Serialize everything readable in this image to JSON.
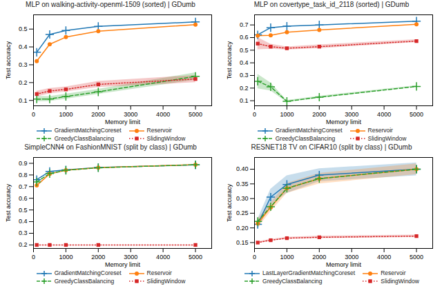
{
  "chart_data": [
    {
      "type": "line",
      "title": "MLP on walking-activity-openml-1509 (sorted) | GDumb",
      "xlabel": "Memory limit",
      "ylabel": "Test accuracy",
      "x": [
        100,
        500,
        1000,
        2000,
        5000
      ],
      "xlim": [
        0,
        5500
      ],
      "xticks": [
        0,
        1000,
        2000,
        3000,
        4000,
        5000
      ],
      "ylim": [
        0.07,
        0.58
      ],
      "yticks": [
        0.1,
        0.2,
        0.3,
        0.4,
        0.5
      ],
      "grid": false,
      "legend": "bottom",
      "series": [
        {
          "name": "GradientMatchingCoreset",
          "color": "#1f77b4",
          "marker": "plus",
          "line_style": "solid",
          "values": [
            0.37,
            0.47,
            0.492,
            0.515,
            0.54
          ]
        },
        {
          "name": "Reservoir",
          "color": "#ff7f0e",
          "marker": "circle",
          "line_style": "solid",
          "values": [
            0.32,
            0.415,
            0.455,
            0.488,
            0.525
          ]
        },
        {
          "name": "GreedyClassBalancing",
          "color": "#2ca02c",
          "marker": "plus",
          "line_style": "dashed",
          "values": [
            0.108,
            0.108,
            0.122,
            0.148,
            0.235
          ],
          "lower": [
            0.093,
            0.095,
            0.108,
            0.135,
            0.215
          ],
          "upper": [
            0.123,
            0.122,
            0.136,
            0.163,
            0.255
          ]
        },
        {
          "name": "SlidingWindow",
          "color": "#d62728",
          "marker": "square",
          "line_style": "dotted",
          "values": [
            0.136,
            0.153,
            0.162,
            0.19,
            0.22
          ],
          "lower": [
            0.12,
            0.138,
            0.148,
            0.173,
            0.2
          ],
          "upper": [
            0.152,
            0.168,
            0.176,
            0.207,
            0.24
          ]
        }
      ]
    },
    {
      "type": "line",
      "title": "MLP on covertype_task_id_2118 (sorted) | GDumb",
      "xlabel": "Memory limit",
      "ylabel": "Test accuracy",
      "x": [
        100,
        500,
        1000,
        2000,
        5000
      ],
      "xlim": [
        0,
        5500
      ],
      "xticks": [
        0,
        1000,
        2000,
        3000,
        4000,
        5000
      ],
      "ylim": [
        0.06,
        0.78
      ],
      "yticks": [
        0.1,
        0.2,
        0.3,
        0.4,
        0.5,
        0.6,
        0.7
      ],
      "grid": false,
      "legend": "bottom",
      "series": [
        {
          "name": "GradientMatchingCoreset",
          "color": "#1f77b4",
          "marker": "plus",
          "line_style": "solid",
          "values": [
            0.622,
            0.678,
            0.69,
            0.7,
            0.73
          ]
        },
        {
          "name": "Reservoir",
          "color": "#ff7f0e",
          "marker": "circle",
          "line_style": "solid",
          "values": [
            0.615,
            0.618,
            0.642,
            0.66,
            0.705
          ]
        },
        {
          "name": "GreedyClassBalancing",
          "color": "#2ca02c",
          "marker": "plus",
          "line_style": "dashed",
          "values": [
            0.254,
            0.21,
            0.095,
            0.128,
            0.213
          ],
          "lower": [
            0.195,
            0.178,
            0.088,
            0.12,
            0.208
          ],
          "upper": [
            0.31,
            0.242,
            0.102,
            0.136,
            0.22
          ]
        },
        {
          "name": "SlidingWindow",
          "color": "#d62728",
          "marker": "square",
          "line_style": "dotted",
          "values": [
            0.552,
            0.528,
            0.515,
            0.528,
            0.572
          ],
          "lower": [
            0.505,
            0.508,
            0.503,
            0.513,
            0.562
          ],
          "upper": [
            0.6,
            0.548,
            0.527,
            0.543,
            0.583
          ]
        }
      ]
    },
    {
      "type": "line",
      "title": "SimpleCNN4 on FashionMNIST (split by class) | GDumb",
      "xlabel": "Memory limit",
      "ylabel": "Test accuracy",
      "x": [
        100,
        500,
        1000,
        2000,
        5000
      ],
      "xlim": [
        0,
        5500
      ],
      "xticks": [
        0,
        1000,
        2000,
        3000,
        4000,
        5000
      ],
      "ylim": [
        0.17,
        0.95
      ],
      "yticks": [
        0.2,
        0.3,
        0.4,
        0.5,
        0.6,
        0.7,
        0.8,
        0.9
      ],
      "grid": false,
      "legend": "bottom",
      "series": [
        {
          "name": "GradientMatchingCoreset",
          "color": "#1f77b4",
          "marker": "plus",
          "line_style": "solid",
          "values": [
            0.76,
            0.83,
            0.843,
            0.864,
            0.886
          ]
        },
        {
          "name": "Reservoir",
          "color": "#ff7f0e",
          "marker": "circle",
          "line_style": "solid",
          "values": [
            0.71,
            0.81,
            0.84,
            0.863,
            0.888
          ]
        },
        {
          "name": "GreedyClassBalancing",
          "color": "#2ca02c",
          "marker": "plus",
          "line_style": "dashed",
          "values": [
            0.74,
            0.812,
            0.84,
            0.862,
            0.888
          ]
        },
        {
          "name": "SlidingWindow",
          "color": "#d62728",
          "marker": "square",
          "line_style": "dotted",
          "values": [
            0.2,
            0.2,
            0.2,
            0.2,
            0.2
          ]
        }
      ]
    },
    {
      "type": "line",
      "title": "RESNET18 TV on CIFAR10 (split by class) | GDumb",
      "xlabel": "Memory limit",
      "ylabel": "Test accuracy",
      "x": [
        100,
        500,
        1000,
        2000,
        5000
      ],
      "xlim": [
        0,
        5500
      ],
      "xticks": [
        0,
        1000,
        2000,
        3000,
        4000,
        5000
      ],
      "ylim": [
        0.13,
        0.44
      ],
      "yticks": [
        0.15,
        {
          "value": 0.2,
          "label": "0.20"
        },
        0.25,
        {
          "value": 0.3,
          "label": "0.30"
        },
        0.35,
        {
          "value": 0.4,
          "label": "0.40"
        }
      ],
      "grid": false,
      "legend": "bottom",
      "series": [
        {
          "name": "LastLayerGradientMatchingCoreset",
          "color": "#1f77b4",
          "marker": "plus",
          "line_style": "solid",
          "values": [
            0.212,
            0.305,
            0.348,
            0.38,
            0.4
          ],
          "lower": [
            0.195,
            0.278,
            0.318,
            0.358,
            0.378
          ],
          "upper": [
            0.23,
            0.332,
            0.378,
            0.402,
            0.422
          ]
        },
        {
          "name": "Reservoir",
          "color": "#ff7f0e",
          "marker": "circle",
          "line_style": "solid",
          "values": [
            0.215,
            0.27,
            0.335,
            0.368,
            0.4
          ],
          "lower": [
            0.2,
            0.255,
            0.318,
            0.35,
            0.382
          ],
          "upper": [
            0.23,
            0.285,
            0.352,
            0.386,
            0.418
          ]
        },
        {
          "name": "GreedyClassBalancing",
          "color": "#2ca02c",
          "marker": "plus",
          "line_style": "dashed",
          "values": [
            0.222,
            0.272,
            0.335,
            0.368,
            0.4
          ]
        },
        {
          "name": "SlidingWindow",
          "color": "#d62728",
          "marker": "square",
          "line_style": "dotted",
          "values": [
            0.15,
            0.158,
            0.165,
            0.168,
            0.172
          ],
          "lower": [
            0.148,
            0.155,
            0.162,
            0.164,
            0.168
          ],
          "upper": [
            0.153,
            0.161,
            0.168,
            0.172,
            0.176
          ]
        }
      ]
    }
  ]
}
